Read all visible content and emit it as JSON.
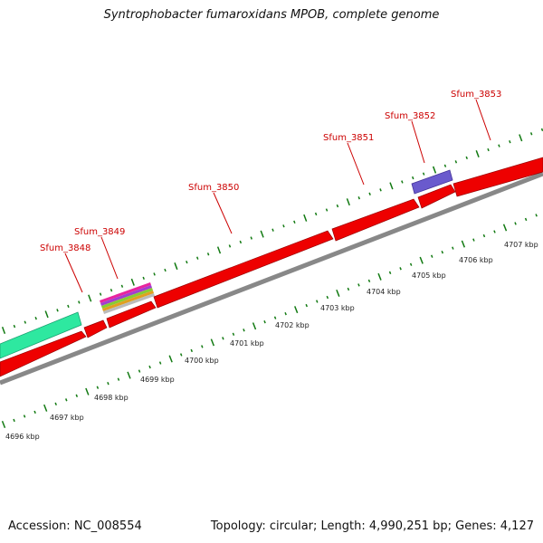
{
  "title": "Syntrophobacter fumaroxidans MPOB, complete genome",
  "footer": {
    "accession": "Accession: NC_008554",
    "info": "Topology: circular; Length: 4,990,251 bp; Genes: 4,127"
  },
  "colors": {
    "gene": "#ee0000",
    "gene_border": "#990000",
    "backbone": "#888888",
    "tick": "#127a12",
    "label": "#cc0000",
    "feature_teal": "#2ee8a0",
    "feature_purple": "#6a5acd"
  },
  "gene_labels": [
    {
      "name": "Sfum_3848"
    },
    {
      "name": "Sfum_3849"
    },
    {
      "name": "Sfum_3850"
    },
    {
      "name": "Sfum_3851"
    },
    {
      "name": "Sfum_3852"
    },
    {
      "name": "Sfum_3853"
    }
  ],
  "scale_labels": [
    "4696 kbp",
    "4697 kbp",
    "4698 kbp",
    "4699 kbp",
    "4700 kbp",
    "4701 kbp",
    "4702 kbp",
    "4703 kbp",
    "4704 kbp",
    "4705 kbp",
    "4706 kbp",
    "4707 kbp"
  ]
}
